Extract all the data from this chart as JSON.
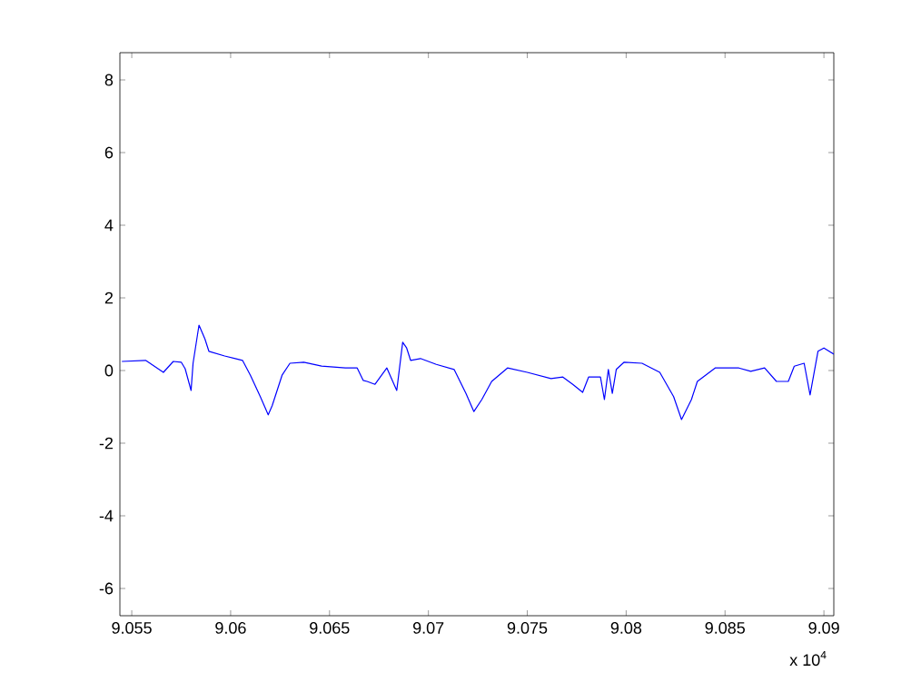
{
  "chart_data": {
    "type": "line",
    "color": "#0000ff",
    "marker": "none",
    "line_style": "solid",
    "x": [
      9.0545,
      9.0557,
      9.0566,
      9.0571,
      9.0575,
      9.0577,
      9.058,
      9.0581,
      9.0584,
      9.0587,
      9.0589,
      9.0597,
      9.0606,
      9.061,
      9.0615,
      9.0619,
      9.0621,
      9.0626,
      9.063,
      9.0637,
      9.0646,
      9.0658,
      9.0664,
      9.0667,
      9.0669,
      9.0673,
      9.0679,
      9.0684,
      9.0687,
      9.0689,
      9.0691,
      9.0696,
      9.0704,
      9.0713,
      9.0719,
      9.0723,
      9.0727,
      9.0732,
      9.074,
      9.075,
      9.0762,
      9.0768,
      9.0773,
      9.0778,
      9.0781,
      9.0787,
      9.0789,
      9.0791,
      9.0793,
      9.0795,
      9.0799,
      9.0808,
      9.0817,
      9.0824,
      9.0828,
      9.0833,
      9.0836,
      9.0845,
      9.0857,
      9.0863,
      9.087,
      9.0876,
      9.0882,
      9.0885,
      9.089,
      9.0893,
      9.0897,
      9.09,
      9.0905
    ],
    "values": [
      0.25,
      0.28,
      -0.05,
      0.25,
      0.23,
      0.05,
      -0.55,
      0.2,
      1.25,
      0.87,
      0.53,
      0.4,
      0.28,
      -0.13,
      -0.72,
      -1.22,
      -0.97,
      -0.13,
      0.2,
      0.23,
      0.12,
      0.07,
      0.07,
      -0.27,
      -0.3,
      -0.38,
      0.07,
      -0.55,
      0.78,
      0.62,
      0.28,
      0.33,
      0.17,
      0.03,
      -0.63,
      -1.13,
      -0.8,
      -0.3,
      0.07,
      -0.05,
      -0.22,
      -0.18,
      -0.38,
      -0.6,
      -0.18,
      -0.18,
      -0.8,
      0.03,
      -0.63,
      0.03,
      0.23,
      0.2,
      -0.05,
      -0.72,
      -1.35,
      -0.8,
      -0.3,
      0.07,
      0.07,
      -0.02,
      0.07,
      -0.3,
      -0.3,
      0.12,
      0.2,
      -0.67,
      0.53,
      0.62,
      0.45
    ],
    "xlim": [
      9.0544,
      9.0905
    ],
    "ylim": [
      -6.75,
      8.75
    ],
    "xticks": [
      {
        "value": 9.055,
        "label": "9.055"
      },
      {
        "value": 9.06,
        "label": "9.06"
      },
      {
        "value": 9.065,
        "label": "9.065"
      },
      {
        "value": 9.07,
        "label": "9.07"
      },
      {
        "value": 9.075,
        "label": "9.075"
      },
      {
        "value": 9.08,
        "label": "9.08"
      },
      {
        "value": 9.085,
        "label": "9.085"
      },
      {
        "value": 9.09,
        "label": "9.09"
      }
    ],
    "yticks": [
      -6,
      -4,
      -2,
      0,
      2,
      4,
      6,
      8
    ],
    "annotations": [
      "x 10$^{4}$"
    ]
  }
}
